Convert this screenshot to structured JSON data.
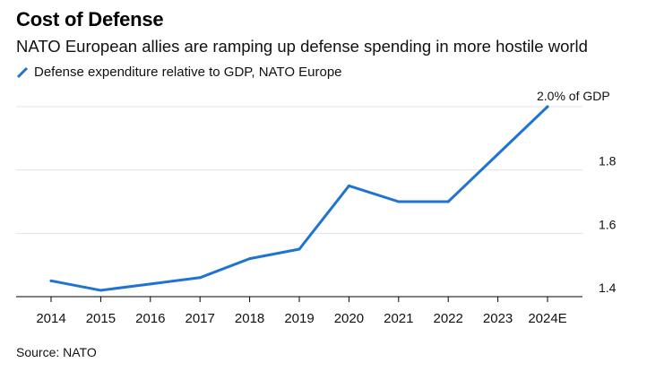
{
  "header": {
    "title": "Cost of Defense",
    "subtitle": "NATO European allies are ramping up defense spending in more hostile world"
  },
  "footer": {
    "source": "Source: NATO"
  },
  "chart_data": {
    "type": "line",
    "x": [
      "2014",
      "2015",
      "2016",
      "2017",
      "2018",
      "2019",
      "2020",
      "2021",
      "2022",
      "2023",
      "2024E"
    ],
    "series": [
      {
        "name": "Defense expenditure relative to GDP, NATO Europe",
        "color": "#1f73d2",
        "values": [
          1.45,
          1.42,
          1.44,
          1.46,
          1.52,
          1.55,
          1.75,
          1.7,
          1.7,
          1.85,
          2.0
        ]
      }
    ],
    "yticks": [
      1.4,
      1.6,
      1.8
    ],
    "ylim": [
      1.4,
      2.0
    ],
    "grid": true,
    "y_axis_side": "right",
    "annotations": [
      {
        "x": "2024E",
        "y": 2.0,
        "text": "2.0% of GDP"
      }
    ]
  }
}
